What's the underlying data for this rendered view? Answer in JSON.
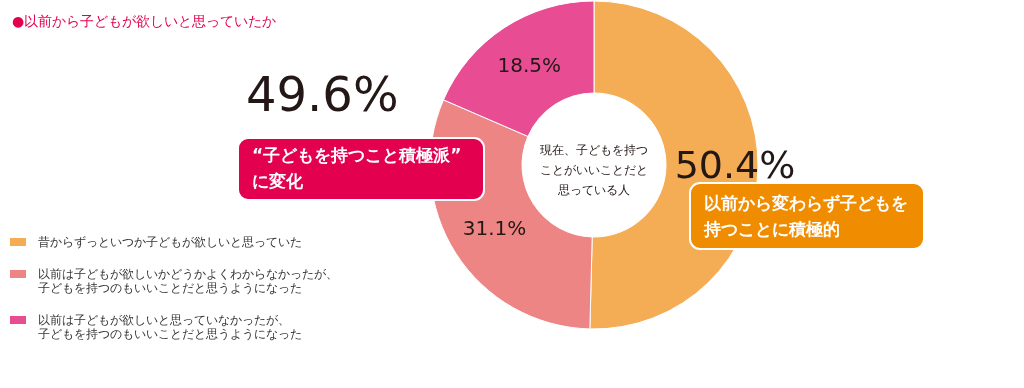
{
  "chart_data": {
    "type": "donut",
    "title": "●以前から子どもが欲しいと思っていたか",
    "categories": [
      "昔からずっといつか子どもが欲しいと思っていた",
      "以前は子どもが欲しいかどうかよくわからなかったが、子どもを持つのもいいことだと思うようになった",
      "以前は子どもが欲しいと思っていなかったが、子どもを持つのもいいことだと思うようになった"
    ],
    "values": [
      50.4,
      31.1,
      18.5
    ],
    "value_labels": [
      "50.4%",
      "31.1%",
      "18.5%"
    ],
    "colors": [
      "#f5ad55",
      "#ee8585",
      "#e84d93"
    ],
    "legend": "bottom left",
    "annotations": [
      "現在、子どもを持つことがいいことだと思っている人",
      "49.6%",
      "“子どもを持つこと積極派”に変化",
      "以前から変わらず子どもを持つことに積極的"
    ]
  }
}
